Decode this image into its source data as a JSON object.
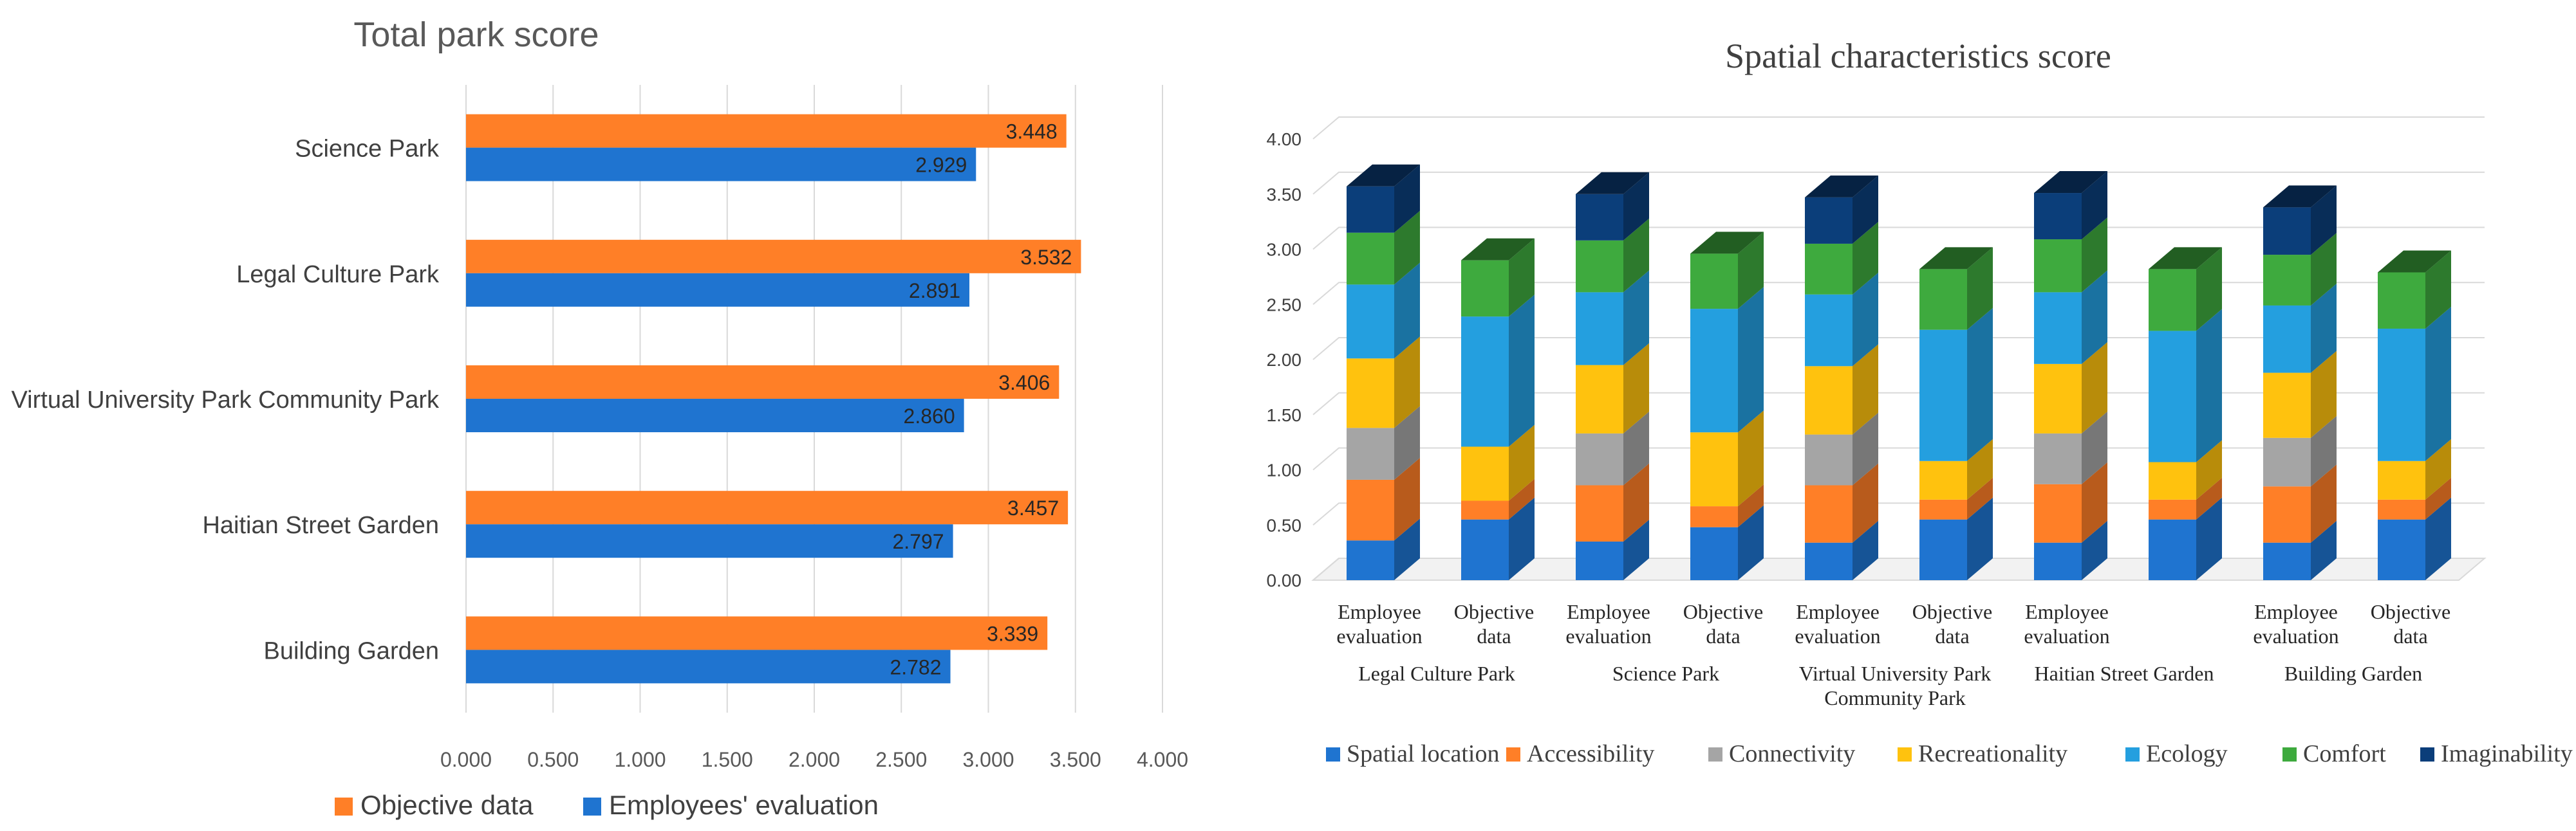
{
  "chart_data": [
    {
      "type": "bar",
      "orientation": "horizontal",
      "title": "Total park score",
      "categories": [
        "Science Park",
        "Legal Culture Park",
        "Virtual University Park Community Park",
        "Haitian Street Garden",
        "Building Garden"
      ],
      "series": [
        {
          "name": "Objective data",
          "color": "#FF7F27",
          "values": [
            3.448,
            3.532,
            3.406,
            3.457,
            3.339
          ],
          "labels": [
            "3.448",
            "3.532",
            "3.406",
            "3.457",
            "3.339"
          ]
        },
        {
          "name": "Employees' evaluation",
          "color": "#1F74D0",
          "values": [
            2.929,
            2.891,
            2.86,
            2.797,
            2.782
          ],
          "labels": [
            "2.929",
            "2.891",
            "2.860",
            "2.797",
            "2.782"
          ]
        }
      ],
      "xlim": [
        0,
        4
      ],
      "xticks": [
        "0.000",
        "0.500",
        "1.000",
        "1.500",
        "2.000",
        "2.500",
        "3.000",
        "3.500",
        "4.000"
      ],
      "grid": true,
      "legend_position": "bottom",
      "xlabel": "",
      "ylabel": ""
    },
    {
      "type": "bar",
      "stacked": true,
      "style": "3d",
      "title": "Spatial characteristics score",
      "groups": [
        {
          "name": "Legal Culture Park",
          "lines": [
            "Legal Culture Park"
          ]
        },
        {
          "name": "Science Park",
          "lines": [
            "Science Park"
          ]
        },
        {
          "name": "Virtual University Park Community Park",
          "lines": [
            "Virtual University Park",
            "Community Park"
          ]
        },
        {
          "name": "Haitian Street Garden",
          "lines": [
            "Haitian Street Garden"
          ]
        },
        {
          "name": "Building Garden",
          "lines": [
            "Building Garden"
          ]
        }
      ],
      "bars": [
        {
          "group": 0,
          "label": [
            "Employee",
            "evaluation"
          ],
          "values": [
            0.36,
            0.55,
            0.47,
            0.63,
            0.67,
            0.47,
            0.42
          ]
        },
        {
          "group": 0,
          "label": [
            "Objective",
            "data"
          ],
          "values": [
            0.55,
            0.17,
            0,
            0.49,
            1.18,
            0.51,
            0
          ]
        },
        {
          "group": 1,
          "label": [
            "Employee",
            "evaluation"
          ],
          "values": [
            0.35,
            0.51,
            0.47,
            0.62,
            0.66,
            0.47,
            0.42
          ]
        },
        {
          "group": 1,
          "label": [
            "Objective",
            "data"
          ],
          "values": [
            0.48,
            0.19,
            0,
            0.67,
            1.12,
            0.5,
            0
          ]
        },
        {
          "group": 2,
          "label": [
            "Employee",
            "evaluation"
          ],
          "values": [
            0.34,
            0.52,
            0.46,
            0.62,
            0.65,
            0.46,
            0.42
          ]
        },
        {
          "group": 2,
          "label": [
            "Objective",
            "data"
          ],
          "values": [
            0.55,
            0.18,
            0,
            0.35,
            1.19,
            0.55,
            0
          ]
        },
        {
          "group": 3,
          "label": [
            "Employee",
            "evaluation"
          ],
          "values": [
            0.34,
            0.53,
            0.46,
            0.63,
            0.65,
            0.48,
            0.42
          ]
        },
        {
          "group": 3,
          "label": [
            "",
            ""
          ],
          "values": [
            0.55,
            0.18,
            0,
            0.34,
            1.19,
            0.56,
            0
          ]
        },
        {
          "group": 4,
          "label": [
            "Employee",
            "evaluation"
          ],
          "values": [
            0.34,
            0.51,
            0.44,
            0.59,
            0.61,
            0.46,
            0.43
          ]
        },
        {
          "group": 4,
          "label": [
            "Objective",
            "data"
          ],
          "values": [
            0.55,
            0.18,
            0,
            0.35,
            1.2,
            0.51,
            0
          ]
        }
      ],
      "series": [
        {
          "name": "Spatial location",
          "color": "#1F74D0"
        },
        {
          "name": "Accessibility",
          "color": "#FF7F27"
        },
        {
          "name": "Connectivity",
          "color": "#A5A5A5"
        },
        {
          "name": "Recreationality",
          "color": "#FFC20E"
        },
        {
          "name": "Ecology",
          "color": "#249FDF"
        },
        {
          "name": "Comfort",
          "color": "#3EAA3E"
        },
        {
          "name": "Imaginability",
          "color": "#0B3E7A"
        }
      ],
      "ylim": [
        0,
        4
      ],
      "yticks": [
        "0.00",
        "0.50",
        "1.00",
        "1.50",
        "2.00",
        "2.50",
        "3.00",
        "3.50",
        "4.00"
      ],
      "grid": true,
      "legend_position": "bottom",
      "xlabel": "",
      "ylabel": ""
    }
  ]
}
